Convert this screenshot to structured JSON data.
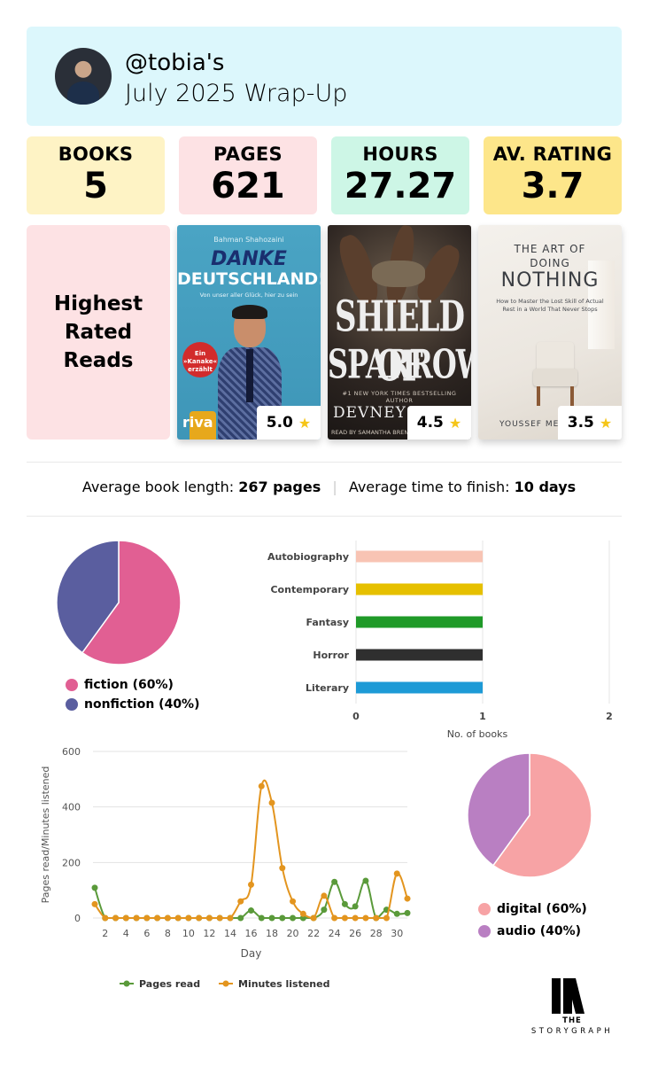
{
  "header": {
    "username": "@tobia's",
    "subtitle": "July 2025 Wrap-Up"
  },
  "stats": [
    {
      "label": "BOOKS",
      "value": "5",
      "color": "#fef3c5"
    },
    {
      "label": "PAGES",
      "value": "621",
      "color": "#fde2e4"
    },
    {
      "label": "HOURS",
      "value": "27.27",
      "color": "#cdf6e6"
    },
    {
      "label": "AV. RATING",
      "value": "3.7",
      "color": "#fde68a"
    }
  ],
  "highest_rated": {
    "title": "Highest\nRated\nReads",
    "books": [
      {
        "rating": "5.0",
        "cover_texts": {
          "author": "Bahman Shahozaini",
          "title1": "DANKE",
          "title2": "DEUTSCHLAND!",
          "subtitle": "Von unser aller Glück, hier zu sein",
          "badge": "Ein »Kanake« erzählt",
          "publisher": "riva"
        }
      },
      {
        "rating": "4.5",
        "cover_texts": {
          "title1": "SHIELD OF",
          "title2": "SPARROWS",
          "blurb": "#1 NEW YORK TIMES BESTSELLING AUTHOR",
          "author": "DEVNEY",
          "reader": "READ BY SAMANTHA BRENTMOOR"
        }
      },
      {
        "rating": "3.5",
        "cover_texts": {
          "title1": "THE ART OF",
          "title2": "DOING",
          "title3": "NOTHING",
          "subtitle": "How to Master the Lost Skill of Actual Rest in a World That Never Stops",
          "author": "YOUSSEF ME"
        }
      }
    ],
    "star_icon": "star-icon"
  },
  "averages": {
    "length_label": "Average book length:",
    "length_value": "267 pages",
    "time_label": "Average time to finish:",
    "time_value": "10 days"
  },
  "fiction_pie": {
    "chart_data": {
      "type": "pie",
      "slices": [
        {
          "label": "fiction (60%)",
          "value": 60,
          "color": "#e15f93"
        },
        {
          "label": "nonfiction (40%)",
          "value": 40,
          "color": "#5a5e9f"
        }
      ]
    }
  },
  "genres_bar": {
    "chart_data": {
      "type": "bar",
      "orientation": "horizontal",
      "categories": [
        "Autobiography",
        "Contemporary",
        "Fantasy",
        "Horror",
        "Literary"
      ],
      "values": [
        1,
        1,
        1,
        1,
        1
      ],
      "colors": [
        "#f8c4b4",
        "#e6c000",
        "#1f9a28",
        "#2f2f2f",
        "#1d9ad6"
      ],
      "xlabel": "No. of books",
      "xlim": [
        0,
        2
      ],
      "xticks": [
        "0",
        "1",
        "2"
      ]
    }
  },
  "line_chart": {
    "chart_data": {
      "type": "line",
      "xlabel": "Day",
      "ylabel": "Pages read/Minutes listened",
      "ylim": [
        0,
        600
      ],
      "yticks": [
        "0",
        "200",
        "400",
        "600"
      ],
      "xticks": [
        "2",
        "4",
        "6",
        "8",
        "10",
        "12",
        "14",
        "16",
        "18",
        "20",
        "22",
        "24",
        "26",
        "28",
        "30"
      ],
      "x": [
        1,
        2,
        3,
        4,
        5,
        6,
        7,
        8,
        9,
        10,
        11,
        12,
        13,
        14,
        15,
        16,
        17,
        18,
        19,
        20,
        21,
        22,
        23,
        24,
        25,
        26,
        27,
        28,
        29,
        30,
        31
      ],
      "series": [
        {
          "name": "Pages read",
          "color": "#5a9a3a",
          "values": [
            109,
            0,
            0,
            0,
            0,
            0,
            0,
            0,
            0,
            0,
            0,
            0,
            0,
            0,
            0,
            27,
            0,
            0,
            0,
            0,
            0,
            0,
            30,
            130,
            50,
            42,
            134,
            0,
            30,
            15,
            18
          ]
        },
        {
          "name": "Minutes listened",
          "color": "#e3951f",
          "values": [
            50,
            0,
            0,
            0,
            0,
            0,
            0,
            0,
            0,
            0,
            0,
            0,
            0,
            0,
            60,
            120,
            475,
            415,
            180,
            60,
            15,
            0,
            80,
            0,
            0,
            0,
            0,
            0,
            0,
            160,
            70
          ]
        }
      ]
    }
  },
  "format_pie": {
    "chart_data": {
      "type": "pie",
      "slices": [
        {
          "label": "digital (60%)",
          "value": 60,
          "color": "#f7a3a5"
        },
        {
          "label": "audio (40%)",
          "value": 40,
          "color": "#b97fc2"
        }
      ]
    }
  },
  "logo": {
    "line1": "THE",
    "line2": "STORYGRAPH"
  }
}
